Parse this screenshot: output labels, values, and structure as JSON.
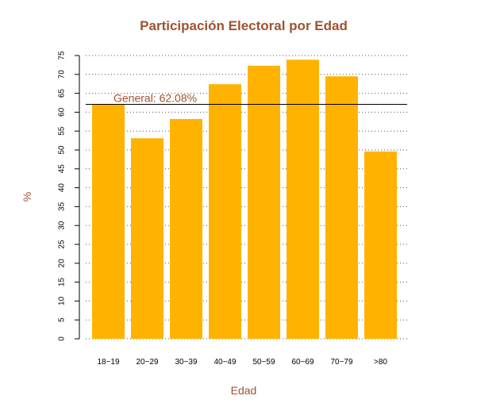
{
  "colors": {
    "bar": "#FFB300",
    "title": "#A0522D",
    "axis_label": "#A0522D",
    "ref_line": "#000000",
    "ref_label": "#A0522D",
    "grid": "#555555"
  },
  "chart_data": {
    "type": "bar",
    "title": "Participación Electoral por Edad",
    "xlabel": "Edad",
    "ylabel": "%",
    "categories": [
      "18−19",
      "20−29",
      "30−39",
      "40−49",
      "50−59",
      "60−69",
      "70−79",
      ">80"
    ],
    "values": [
      62.0,
      53.1,
      58.2,
      67.4,
      72.3,
      73.9,
      69.5,
      49.6
    ],
    "ylim": [
      0,
      75
    ],
    "yticks": [
      0,
      5,
      10,
      15,
      20,
      25,
      30,
      35,
      40,
      45,
      50,
      55,
      60,
      65,
      70,
      75
    ],
    "grid": "horizontal dotted",
    "reference_line": {
      "value": 62.08,
      "label": "General: 62.08%"
    }
  }
}
